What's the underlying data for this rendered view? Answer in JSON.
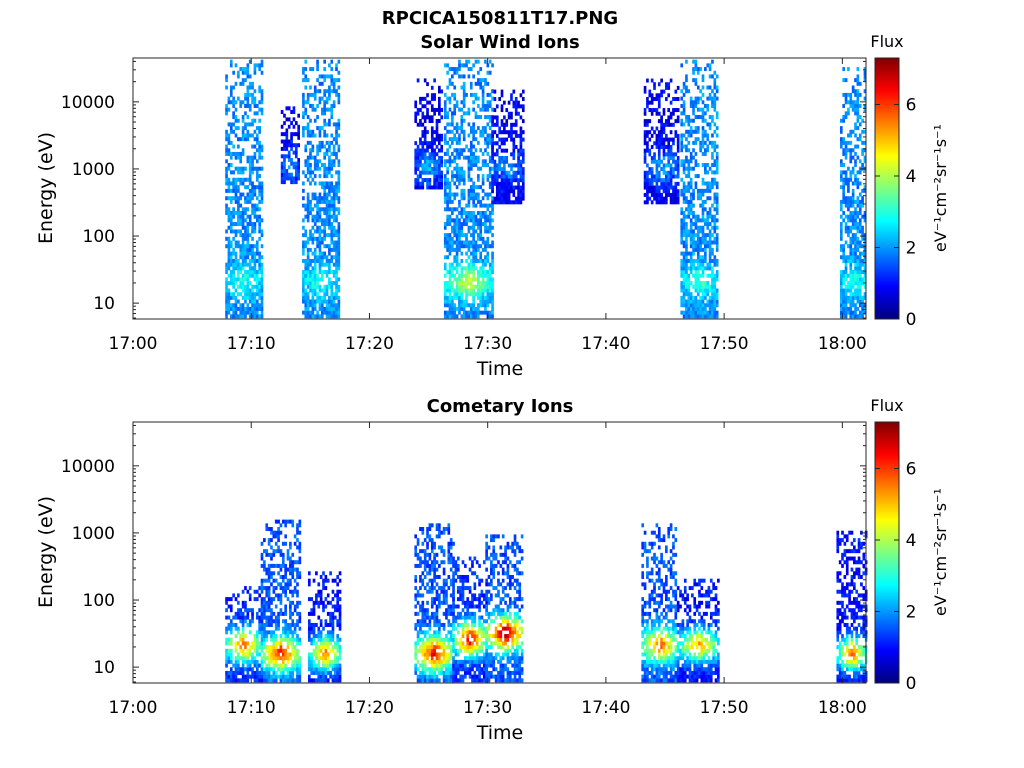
{
  "figure_title": "RPCICA150811T17.PNG",
  "colors": {
    "colormap": [
      "#00007f",
      "#0000ff",
      "#007fff",
      "#00ffff",
      "#7fff7f",
      "#ffff00",
      "#ff7f00",
      "#ff0000",
      "#7f0000"
    ],
    "axis": "#262626"
  },
  "colorbar": {
    "title": "Flux",
    "label": "eV⁻¹cm⁻²sr⁻¹s⁻¹",
    "range": [
      0,
      7.3
    ],
    "ticks": [
      0,
      2,
      4,
      6
    ]
  },
  "chart_data": [
    {
      "type": "heatmap",
      "title": "Solar Wind Ions",
      "xlabel": "Time",
      "ylabel": "Energy (eV)",
      "x_scale": "time",
      "y_scale": "log",
      "xlim": [
        "17:00",
        "18:02"
      ],
      "ylim": [
        5.8,
        45000
      ],
      "x_ticks": [
        "17:00",
        "17:10",
        "17:20",
        "17:30",
        "17:40",
        "17:50",
        "18:00"
      ],
      "y_ticks": [
        10,
        100,
        1000,
        10000
      ],
      "grid": false,
      "regions": [
        {
          "t_start": "17:07.8",
          "t_end": "17:10.8",
          "e_min": 6,
          "e_max": 38000,
          "flux_low": 1.9,
          "flux_peak": 3.0,
          "peak_energy": 20
        },
        {
          "t_start": "17:12.5",
          "t_end": "17:14.0",
          "e_min": 600,
          "e_max": 8000,
          "flux_low": 0.8,
          "flux_peak": 2.0,
          "peak_energy": 1000
        },
        {
          "t_start": "17:14.3",
          "t_end": "17:17.3",
          "e_min": 6,
          "e_max": 40000,
          "flux_low": 1.9,
          "flux_peak": 3.0,
          "peak_energy": 20
        },
        {
          "t_start": "17:23.8",
          "t_end": "17:26.0",
          "e_min": 500,
          "e_max": 20000,
          "flux_low": 0.8,
          "flux_peak": 2.2,
          "peak_energy": 1000
        },
        {
          "t_start": "17:26.3",
          "t_end": "17:30.3",
          "e_min": 6,
          "e_max": 38000,
          "flux_low": 1.9,
          "flux_peak": 4.2,
          "peak_energy": 20
        },
        {
          "t_start": "17:30.3",
          "t_end": "17:33.0",
          "e_min": 300,
          "e_max": 15000,
          "flux_low": 0.8,
          "flux_peak": 2.0,
          "peak_energy": 1000
        },
        {
          "t_start": "17:43.2",
          "t_end": "17:46.2",
          "e_min": 300,
          "e_max": 20000,
          "flux_low": 0.8,
          "flux_peak": 2.2,
          "peak_energy": 1000
        },
        {
          "t_start": "17:46.3",
          "t_end": "17:49.5",
          "e_min": 6,
          "e_max": 40000,
          "flux_low": 1.9,
          "flux_peak": 3.2,
          "peak_energy": 20
        },
        {
          "t_start": "17:59.8",
          "t_end": "18:02.0",
          "e_min": 6,
          "e_max": 30000,
          "flux_low": 1.9,
          "flux_peak": 3.0,
          "peak_energy": 20
        }
      ]
    },
    {
      "type": "heatmap",
      "title": "Cometary Ions",
      "xlabel": "Time",
      "ylabel": "Energy (eV)",
      "x_scale": "time",
      "y_scale": "log",
      "xlim": [
        "17:00",
        "18:02"
      ],
      "ylim": [
        5.8,
        45000
      ],
      "x_ticks": [
        "17:00",
        "17:10",
        "17:20",
        "17:30",
        "17:40",
        "17:50",
        "18:00"
      ],
      "y_ticks": [
        10,
        100,
        1000,
        10000
      ],
      "grid": false,
      "regions": [
        {
          "t_start": "17:07.8",
          "t_end": "17:10.8",
          "e_min": 6,
          "e_max": 150,
          "flux_low": 1.2,
          "flux_peak": 5.6,
          "peak_energy": 20
        },
        {
          "t_start": "17:10.8",
          "t_end": "17:14.0",
          "e_min": 6,
          "e_max": 1400,
          "flux_low": 1.5,
          "flux_peak": 6.3,
          "peak_energy": 15
        },
        {
          "t_start": "17:14.8",
          "t_end": "17:17.5",
          "e_min": 6,
          "e_max": 250,
          "flux_low": 1.0,
          "flux_peak": 5.5,
          "peak_energy": 15
        },
        {
          "t_start": "17:23.8",
          "t_end": "17:27.0",
          "e_min": 6,
          "e_max": 1300,
          "flux_low": 1.5,
          "flux_peak": 6.6,
          "peak_energy": 15
        },
        {
          "t_start": "17:27.0",
          "t_end": "17:29.8",
          "e_min": 6,
          "e_max": 400,
          "flux_low": 1.2,
          "flux_peak": 6.6,
          "peak_energy": 25
        },
        {
          "t_start": "17:29.8",
          "t_end": "17:33.0",
          "e_min": 6,
          "e_max": 900,
          "flux_low": 1.5,
          "flux_peak": 7.1,
          "peak_energy": 30
        },
        {
          "t_start": "17:43.0",
          "t_end": "17:46.0",
          "e_min": 6,
          "e_max": 1300,
          "flux_low": 1.5,
          "flux_peak": 5.8,
          "peak_energy": 20
        },
        {
          "t_start": "17:46.0",
          "t_end": "17:49.5",
          "e_min": 6,
          "e_max": 200,
          "flux_low": 1.0,
          "flux_peak": 5.3,
          "peak_energy": 20
        },
        {
          "t_start": "17:59.5",
          "t_end": "18:02.0",
          "e_min": 6,
          "e_max": 1000,
          "flux_low": 1.0,
          "flux_peak": 5.6,
          "peak_energy": 15
        }
      ]
    }
  ]
}
